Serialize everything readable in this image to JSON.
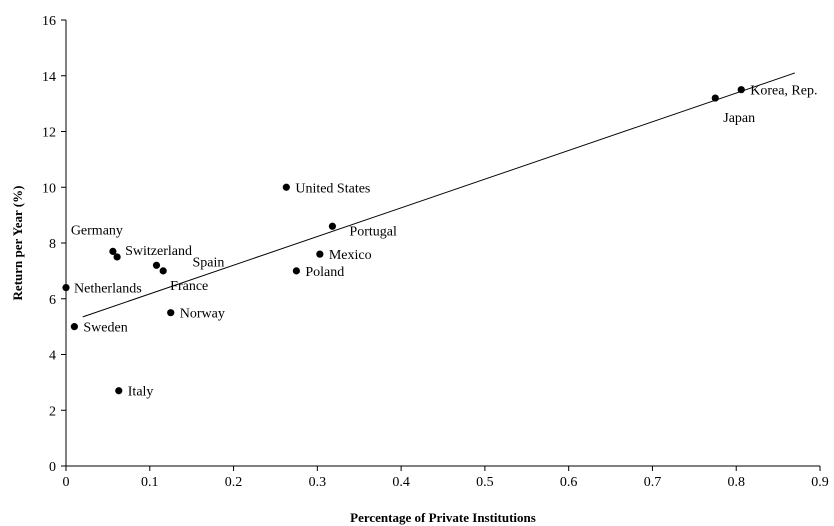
{
  "chart_data": {
    "type": "scatter",
    "title": "",
    "xlabel": "Percentage of Private Institutions",
    "ylabel": "Return per Year (%)",
    "xlim": [
      0,
      0.9
    ],
    "ylim": [
      0,
      16
    ],
    "x_ticks": [
      0,
      0.1,
      0.2,
      0.3,
      0.4,
      0.5,
      0.6,
      0.7,
      0.8,
      0.9
    ],
    "y_ticks": [
      0,
      2,
      4,
      6,
      8,
      10,
      12,
      14,
      16
    ],
    "grid": false,
    "points": [
      {
        "label": "Netherlands",
        "x": 0.0,
        "y": 6.4
      },
      {
        "label": "Sweden",
        "x": 0.01,
        "y": 5.0
      },
      {
        "label": "Germany",
        "x": 0.056,
        "y": 7.7
      },
      {
        "label": "Switzerland",
        "x": 0.061,
        "y": 7.5
      },
      {
        "label": "Italy",
        "x": 0.063,
        "y": 2.7
      },
      {
        "label": "Spain",
        "x": 0.108,
        "y": 7.2
      },
      {
        "label": "France",
        "x": 0.116,
        "y": 7.0
      },
      {
        "label": "Norway",
        "x": 0.125,
        "y": 5.5
      },
      {
        "label": "United States",
        "x": 0.263,
        "y": 10.0
      },
      {
        "label": "Poland",
        "x": 0.275,
        "y": 7.0
      },
      {
        "label": "Mexico",
        "x": 0.303,
        "y": 7.6
      },
      {
        "label": "Portugal",
        "x": 0.318,
        "y": 8.6
      },
      {
        "label": "Japan",
        "x": 0.775,
        "y": 13.2
      },
      {
        "label": "Korea, Rep.",
        "x": 0.806,
        "y": 13.5
      }
    ],
    "trendline": {
      "x": [
        0.02,
        0.87
      ],
      "y": [
        5.35,
        14.1
      ]
    }
  }
}
